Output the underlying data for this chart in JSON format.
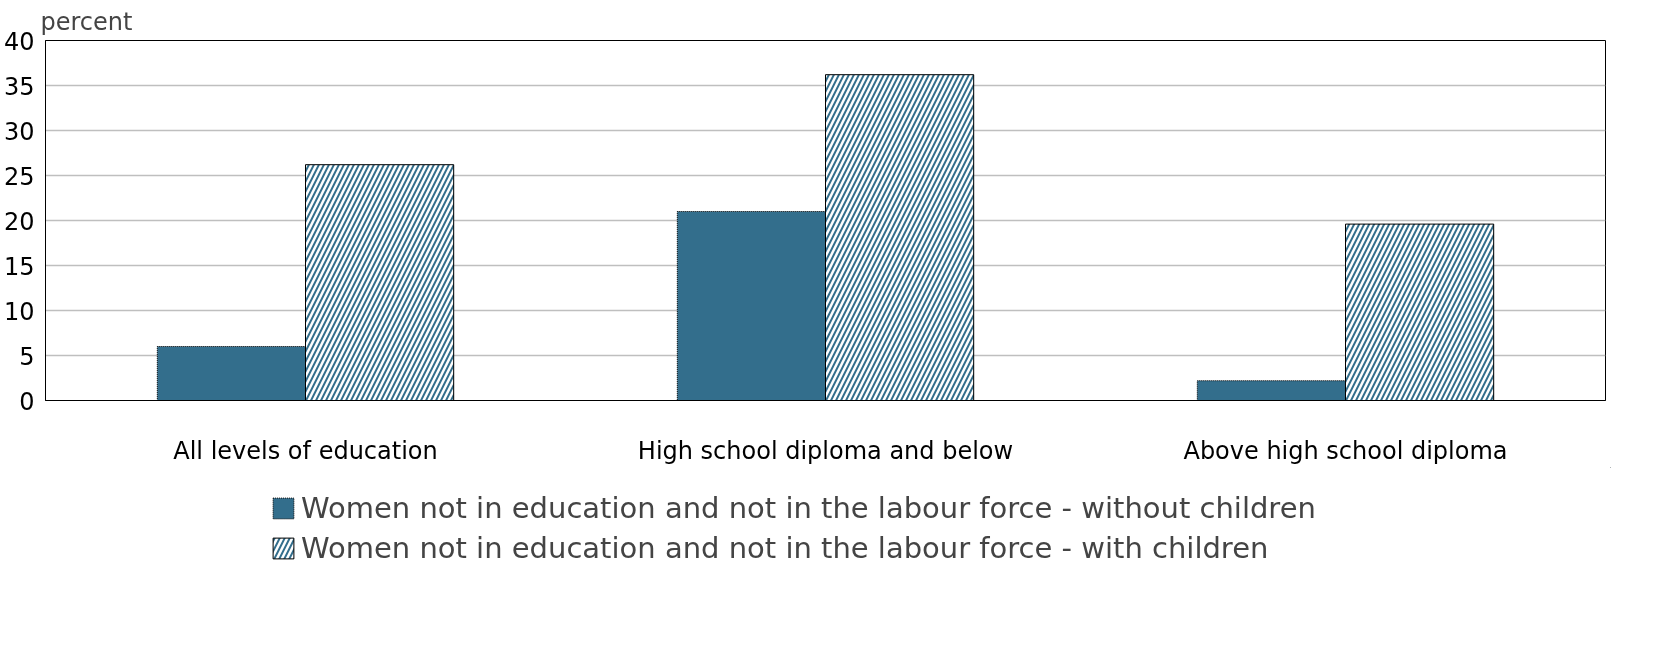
{
  "chart_data": {
    "type": "bar",
    "ylabel": "percent",
    "categories": [
      "All levels of education",
      "High school diploma and below",
      "Above high school diploma"
    ],
    "series": [
      {
        "name": "Women not in education and not in the labour force - without children",
        "color": "#336e8c",
        "values": [
          6.0,
          21.0,
          2.2
        ]
      },
      {
        "name": "Women not in education and not in the labour force - with children",
        "color": "#336e8c",
        "values": [
          26.2,
          36.2,
          19.6
        ]
      }
    ],
    "ylim": [
      0,
      40
    ],
    "yticks": [
      0,
      5,
      10,
      15,
      20,
      25,
      30,
      35,
      40
    ],
    "grid": "y",
    "legend": "bottom"
  }
}
